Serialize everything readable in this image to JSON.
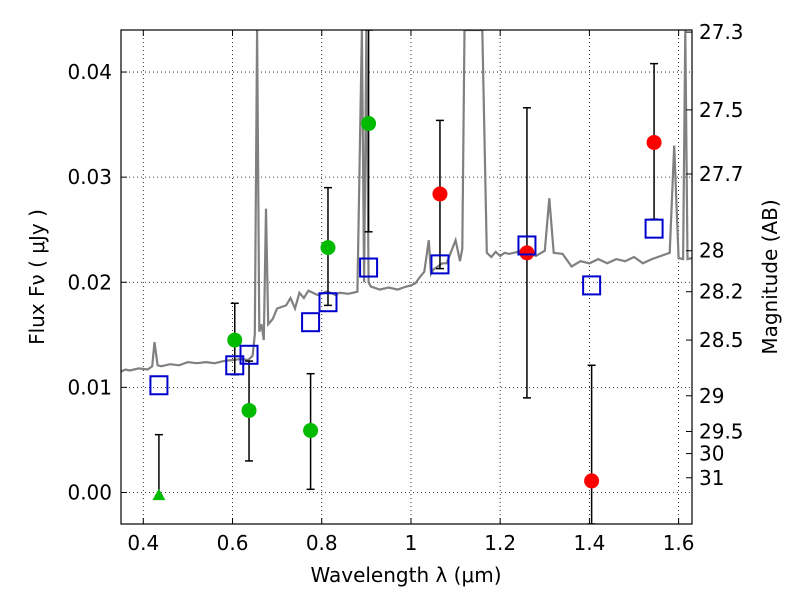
{
  "chart_data": {
    "type": "scatter",
    "xlabel": "Wavelength  λ (μm)",
    "ylabel": "Flux  Fν  ( μJy )",
    "ylabel_right": "Magnitude (AB)",
    "xlim": [
      0.35,
      1.63
    ],
    "ylim": [
      -0.003,
      0.044
    ],
    "grid": true,
    "x_ticks": [
      0.4,
      0.6,
      0.8,
      1.0,
      1.2,
      1.4,
      1.6
    ],
    "x_tick_labels": [
      "0.4",
      "0.6",
      "0.8",
      "1",
      "1.2",
      "1.4",
      "1.6"
    ],
    "y_ticks": [
      0.0,
      0.01,
      0.02,
      0.03,
      0.04
    ],
    "y_tick_labels": [
      "0.00",
      "0.01",
      "0.02",
      "0.03",
      "0.04"
    ],
    "right_ticks": [
      {
        "label": "27.3",
        "flux": 0.0438
      },
      {
        "label": "27.5",
        "flux": 0.0364
      },
      {
        "label": "27.7",
        "flux": 0.0303
      },
      {
        "label": "28",
        "flux": 0.023
      },
      {
        "label": "28.2",
        "flux": 0.0191
      },
      {
        "label": "28.5",
        "flux": 0.0145
      },
      {
        "label": "29",
        "flux": 0.0092
      },
      {
        "label": "29.5",
        "flux": 0.0058
      },
      {
        "label": "30",
        "flux": 0.0037
      },
      {
        "label": "31",
        "flux": 0.0014
      }
    ],
    "series": [
      {
        "color": "#00bb00",
        "marker": "circle",
        "points": [
          {
            "x": 0.605,
            "y": 0.0145,
            "lo": 0.0112,
            "hi": 0.018
          },
          {
            "x": 0.637,
            "y": 0.0078,
            "lo": 0.003,
            "hi": 0.0125
          },
          {
            "x": 0.775,
            "y": 0.0059,
            "lo": 0.0003,
            "hi": 0.0113
          },
          {
            "x": 0.814,
            "y": 0.0233,
            "lo": 0.0178,
            "hi": 0.029
          },
          {
            "x": 0.905,
            "y": 0.0351,
            "lo": 0.0248,
            "hi": 0.044
          }
        ]
      },
      {
        "color": "#00bb00",
        "marker": "triangle",
        "points": [
          {
            "x": 0.435,
            "y": -0.0003,
            "lo": -0.0003,
            "hi": 0.0055
          }
        ]
      },
      {
        "color": "#ff0000",
        "marker": "circle",
        "points": [
          {
            "x": 1.065,
            "y": 0.0284,
            "lo": 0.0213,
            "hi": 0.0354
          },
          {
            "x": 1.26,
            "y": 0.0228,
            "lo": 0.009,
            "hi": 0.0366
          },
          {
            "x": 1.405,
            "y": 0.0011,
            "lo": -0.003,
            "hi": 0.0121
          },
          {
            "x": 1.545,
            "y": 0.0333,
            "lo": 0.026,
            "hi": 0.0408
          }
        ]
      },
      {
        "color": "#0000cc",
        "marker": "square",
        "points": [
          {
            "x": 0.435,
            "y": 0.0102
          },
          {
            "x": 0.605,
            "y": 0.0121
          },
          {
            "x": 0.637,
            "y": 0.0131
          },
          {
            "x": 0.775,
            "y": 0.0162
          },
          {
            "x": 0.814,
            "y": 0.0181
          },
          {
            "x": 0.905,
            "y": 0.0214
          },
          {
            "x": 1.065,
            "y": 0.0217
          },
          {
            "x": 1.26,
            "y": 0.0235
          },
          {
            "x": 1.405,
            "y": 0.0197
          },
          {
            "x": 1.545,
            "y": 0.0251
          }
        ]
      }
    ],
    "model_spectrum": {
      "color": "#808080",
      "x": [
        0.35,
        0.36,
        0.37,
        0.39,
        0.41,
        0.42,
        0.425,
        0.432,
        0.44,
        0.46,
        0.48,
        0.5,
        0.52,
        0.54,
        0.56,
        0.58,
        0.6,
        0.62,
        0.635,
        0.645,
        0.65,
        0.655,
        0.66,
        0.665,
        0.67,
        0.675,
        0.68,
        0.69,
        0.7,
        0.72,
        0.73,
        0.74,
        0.75,
        0.76,
        0.77,
        0.78,
        0.79,
        0.8,
        0.81,
        0.82,
        0.83,
        0.84,
        0.86,
        0.88,
        0.89,
        0.895,
        0.9,
        0.905,
        0.91,
        0.93,
        0.95,
        0.97,
        0.99,
        1.0,
        1.01,
        1.02,
        1.03,
        1.04,
        1.045,
        1.05,
        1.06,
        1.07,
        1.08,
        1.1,
        1.11,
        1.115,
        1.12,
        1.14,
        1.16,
        1.17,
        1.18,
        1.19,
        1.2,
        1.21,
        1.22,
        1.24,
        1.25,
        1.26,
        1.28,
        1.3,
        1.31,
        1.32,
        1.34,
        1.36,
        1.38,
        1.4,
        1.42,
        1.44,
        1.46,
        1.48,
        1.5,
        1.52,
        1.54,
        1.56,
        1.58,
        1.59,
        1.6,
        1.61,
        1.615,
        1.62,
        1.63
      ],
      "y": [
        0.0115,
        0.0117,
        0.0116,
        0.0118,
        0.0117,
        0.012,
        0.0143,
        0.0121,
        0.012,
        0.0122,
        0.0121,
        0.0124,
        0.0123,
        0.0124,
        0.0123,
        0.0125,
        0.0126,
        0.0127,
        0.0126,
        0.013,
        0.015,
        0.044,
        0.0153,
        0.016,
        0.0145,
        0.027,
        0.016,
        0.0165,
        0.0175,
        0.0178,
        0.0185,
        0.0175,
        0.019,
        0.0185,
        0.0192,
        0.019,
        0.0188,
        0.0189,
        0.0191,
        0.019,
        0.0188,
        0.019,
        0.0189,
        0.0191,
        0.044,
        0.02,
        0.044,
        0.02,
        0.0196,
        0.0193,
        0.0195,
        0.0193,
        0.0196,
        0.0197,
        0.0199,
        0.0205,
        0.021,
        0.024,
        0.0208,
        0.0212,
        0.0215,
        0.0218,
        0.0218,
        0.024,
        0.022,
        0.0232,
        0.044,
        0.044,
        0.044,
        0.0228,
        0.0224,
        0.0229,
        0.0225,
        0.0228,
        0.0227,
        0.0229,
        0.0231,
        0.023,
        0.0225,
        0.023,
        0.028,
        0.0228,
        0.0227,
        0.0215,
        0.022,
        0.0218,
        0.0222,
        0.0218,
        0.0222,
        0.022,
        0.0224,
        0.0218,
        0.0222,
        0.0225,
        0.0228,
        0.033,
        0.0223,
        0.0222,
        0.044,
        0.0222,
        0.0223
      ]
    }
  }
}
